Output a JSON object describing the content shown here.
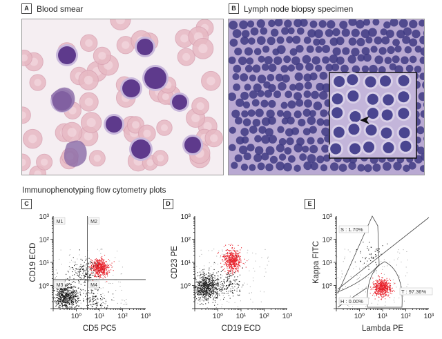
{
  "panels": {
    "a": {
      "letter": "A",
      "title": "Blood smear"
    },
    "b": {
      "letter": "B",
      "title": "Lymph node biopsy specimen"
    },
    "c": {
      "letter": "C"
    },
    "d": {
      "letter": "D"
    },
    "e": {
      "letter": "E"
    }
  },
  "section_title": "Immunophenotyping flow cytometry plots",
  "colors": {
    "event_black": "#1a1a1a",
    "event_red": "#e8202a",
    "rbc": "#e7b9c4",
    "lymphocyte": "#5e3a8c",
    "tissue_bg": "#b7a6d0",
    "tissue_nucleus": "#3e3a82"
  },
  "chart_data": [
    {
      "type": "scatter",
      "panel": "C",
      "xlabel": "CD5 PC5",
      "ylabel": "CD19 ECD",
      "xscale": "log",
      "yscale": "log",
      "xlim": [
        0.1,
        1000
      ],
      "ylim": [
        0.1,
        1000
      ],
      "x_tick_labels": [
        "10⁰",
        "10¹",
        "10²",
        "10³"
      ],
      "y_tick_labels": [
        "10⁰",
        "10¹",
        "10²",
        "10³"
      ],
      "gate_lines": {
        "x": 3,
        "y": 1.8
      },
      "quadrants": [
        "M1",
        "M2",
        "M3",
        "M4"
      ],
      "populations": [
        {
          "color": "red",
          "center": [
            10,
            6
          ],
          "count": 520
        },
        {
          "color": "black",
          "center": [
            0.35,
            0.35
          ],
          "count": 650
        },
        {
          "color": "black",
          "center": [
            6,
            0.25
          ],
          "count": 120
        },
        {
          "color": "black",
          "center": [
            2,
            4
          ],
          "count": 160
        }
      ]
    },
    {
      "type": "scatter",
      "panel": "D",
      "xlabel": "CD19 ECD",
      "ylabel": "CD23 PE",
      "xscale": "log",
      "yscale": "log",
      "xlim": [
        0.1,
        1000
      ],
      "ylim": [
        0.1,
        1000
      ],
      "x_tick_labels": [
        "10⁰",
        "10¹",
        "10²",
        "10³"
      ],
      "y_tick_labels": [
        "10⁰",
        "10¹",
        "10²",
        "10³"
      ],
      "populations": [
        {
          "color": "red",
          "center": [
            4,
            12
          ],
          "count": 520
        },
        {
          "color": "black",
          "center": [
            0.3,
            0.9
          ],
          "count": 700
        },
        {
          "color": "black",
          "center": [
            2.5,
            1.2
          ],
          "count": 150
        }
      ]
    },
    {
      "type": "scatter",
      "panel": "E",
      "xlabel": "Lambda PE",
      "ylabel": "Kappa FITC",
      "xscale": "log",
      "yscale": "log",
      "xlim": [
        0.1,
        1000
      ],
      "ylim": [
        0.1,
        1000
      ],
      "x_tick_labels": [
        "10⁰",
        "10¹",
        "10²",
        "10³"
      ],
      "y_tick_labels": [
        "10⁰",
        "10¹",
        "10²",
        "10³"
      ],
      "gates": [
        {
          "name": "S",
          "label": "S : 1.70%",
          "value_percent": 1.7
        },
        {
          "name": "T",
          "label": "T : 97.36%",
          "value_percent": 97.36
        },
        {
          "name": "H",
          "label": "H : 0.00%",
          "value_percent": 0.0
        }
      ],
      "populations": [
        {
          "color": "red",
          "center": [
            9,
            0.85
          ],
          "count": 550
        },
        {
          "color": "black",
          "center": [
            3,
            20
          ],
          "count": 50
        }
      ]
    }
  ]
}
